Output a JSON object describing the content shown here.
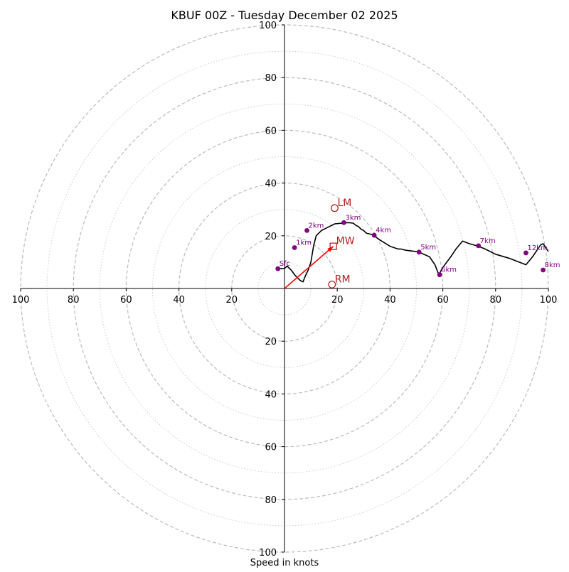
{
  "chart_data": {
    "type": "hodograph",
    "title": "KBUF 00Z - Tuesday December 02 2025",
    "xlabel": "Speed in knots",
    "units": "knots",
    "xlim": [
      -100,
      100
    ],
    "ylim": [
      -100,
      100
    ],
    "ring_step_major": 20,
    "ring_step_minor": 10,
    "tick_values": [
      20,
      40,
      60,
      80,
      100
    ],
    "tick_labels": [
      "20",
      "40",
      "60",
      "80",
      "100"
    ],
    "hodograph": {
      "u": [
        -2.5,
        0,
        1,
        2.5,
        4,
        6,
        7,
        8,
        9,
        10,
        11,
        12,
        14,
        16,
        19,
        22,
        24,
        26,
        27,
        28,
        29,
        30,
        31,
        33,
        34,
        36,
        40,
        43,
        44,
        46,
        50,
        51,
        55,
        57,
        58.5,
        60,
        63,
        65,
        67.5,
        70,
        73.5,
        76,
        80,
        85,
        91.5,
        94,
        97,
        98,
        100
      ],
      "v": [
        7.5,
        7.6,
        8.5,
        7,
        5,
        3,
        2.5,
        5,
        7,
        10,
        16,
        20,
        22,
        23,
        24.5,
        24.8,
        25,
        24.8,
        24,
        23.5,
        22.5,
        22,
        21,
        20.5,
        20,
        18.5,
        16,
        15,
        15,
        14.5,
        14,
        13.8,
        12,
        9,
        5.2,
        8,
        12,
        15,
        18,
        17,
        16,
        15,
        13,
        11.5,
        9,
        12,
        16.5,
        17,
        14
      ]
    },
    "height_markers": [
      {
        "label": "Sfc",
        "u": -2.5,
        "v": 7.5
      },
      {
        "label": "1km",
        "u": 3.8,
        "v": 15.5
      },
      {
        "label": "2km",
        "u": 8.5,
        "v": 22
      },
      {
        "label": "3km",
        "u": 22.5,
        "v": 25
      },
      {
        "label": "4km",
        "u": 34,
        "v": 20.2
      },
      {
        "label": "5km",
        "u": 51,
        "v": 13.8
      },
      {
        "label": "6km",
        "u": 58.8,
        "v": 5.2
      },
      {
        "label": "7km",
        "u": 73.5,
        "v": 16.2
      },
      {
        "label": "8km",
        "u": 98,
        "v": 7
      },
      {
        "label": "12km",
        "u": 91.5,
        "v": 13.5
      }
    ],
    "motion_markers": [
      {
        "label": "LM",
        "u": 19,
        "v": 30.5,
        "shape": "circle"
      },
      {
        "label": "MW",
        "u": 18.5,
        "v": 16,
        "shape": "square"
      },
      {
        "label": "RM",
        "u": 18,
        "v": 1.5,
        "shape": "circle"
      }
    ],
    "mean_wind_vector": {
      "u": 18.5,
      "v": 16
    },
    "colors": {
      "trace": "#000000",
      "height_marker": "#800080",
      "motion_marker": "#b22222",
      "vector": "#ff0000",
      "major_ring": "#bbbbbb",
      "minor_ring": "#cccccc"
    }
  }
}
